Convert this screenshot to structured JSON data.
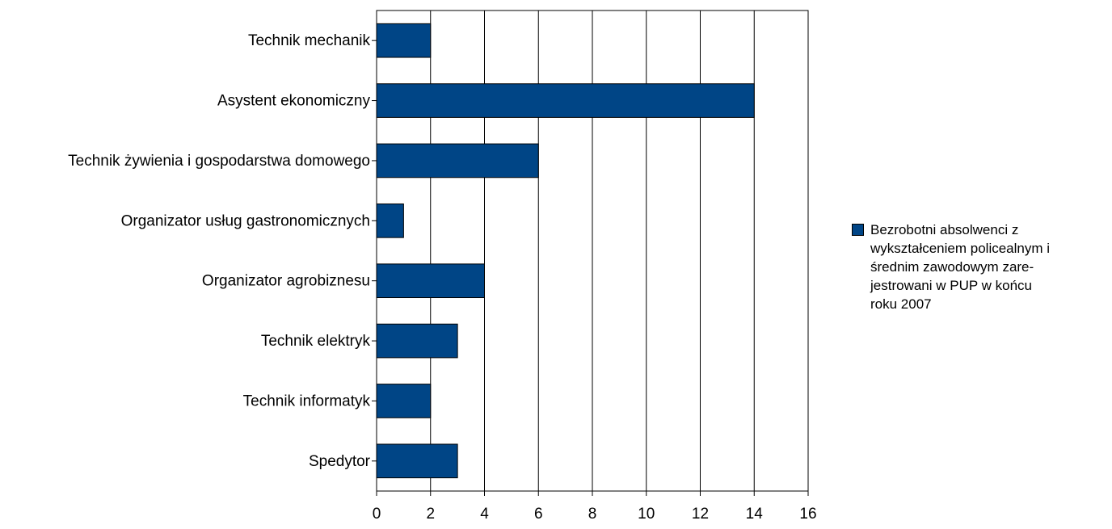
{
  "chart_data": {
    "type": "bar",
    "orientation": "horizontal",
    "categories": [
      "Technik mechanik",
      "Asystent ekonomiczny",
      "Technik żywienia i gospodarstwa domowego",
      "Organizator usług gastronomicznych",
      "Organizator agrobiznesu",
      "Technik elektryk",
      "Technik informatyk",
      "Spedytor"
    ],
    "series": [
      {
        "name": "Bezrobotni absolwenci z wykształceniem policealnym i średnim zawodowym zarejestrowani w PUP w końcu roku 2007",
        "values": [
          2,
          14,
          6,
          1,
          4,
          3,
          2,
          3
        ],
        "color": "#004586"
      }
    ],
    "xlim": [
      0,
      16
    ],
    "xticks": [
      "0",
      "2",
      "4",
      "6",
      "8",
      "10",
      "12",
      "14",
      "16"
    ],
    "grid": "vertical",
    "legend_position": "right"
  },
  "legend": {
    "label": "Bezrobotni absolwenci z\nwykształceniem policealnym i\nśrednim zawodowym zare-\njestrowani w PUP w końcu\nroku 2007"
  }
}
